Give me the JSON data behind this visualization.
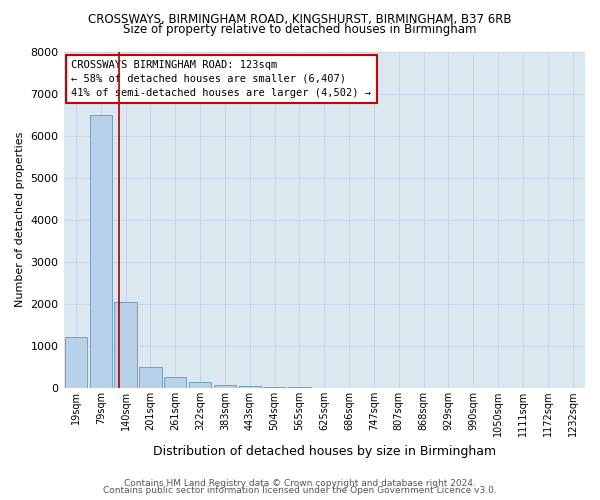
{
  "title": "CROSSWAYS, BIRMINGHAM ROAD, KINGSHURST, BIRMINGHAM, B37 6RB",
  "subtitle": "Size of property relative to detached houses in Birmingham",
  "xlabel": "Distribution of detached houses by size in Birmingham",
  "ylabel": "Number of detached properties",
  "footer1": "Contains HM Land Registry data © Crown copyright and database right 2024.",
  "footer2": "Contains public sector information licensed under the Open Government Licence v3.0.",
  "annotation_line1": "CROSSWAYS BIRMINGHAM ROAD: 123sqm",
  "annotation_line2": "← 58% of detached houses are smaller (6,407)",
  "annotation_line3": "41% of semi-detached houses are larger (4,502) →",
  "bar_labels": [
    "19sqm",
    "79sqm",
    "140sqm",
    "201sqm",
    "261sqm",
    "322sqm",
    "383sqm",
    "443sqm",
    "504sqm",
    "565sqm",
    "625sqm",
    "686sqm",
    "747sqm",
    "807sqm",
    "868sqm",
    "929sqm",
    "990sqm",
    "1050sqm",
    "1111sqm",
    "1172sqm",
    "1232sqm"
  ],
  "bar_values": [
    1200,
    6500,
    2050,
    500,
    250,
    130,
    70,
    40,
    20,
    12,
    8,
    5,
    4,
    3,
    2,
    2,
    1,
    1,
    1,
    1,
    1
  ],
  "bar_color": "#b8d0e8",
  "bar_edge_color": "#6699bb",
  "redline_color": "#aa0000",
  "grid_color": "#c8d8e8",
  "annotation_box_edge": "#cc0000",
  "ylim": [
    0,
    8000
  ],
  "yticks": [
    0,
    1000,
    2000,
    3000,
    4000,
    5000,
    6000,
    7000,
    8000
  ],
  "bg_color": "#ffffff",
  "plot_bg_color": "#dce8f0",
  "title_fontsize": 8.5,
  "subtitle_fontsize": 8.5,
  "redline_x": 1.72
}
